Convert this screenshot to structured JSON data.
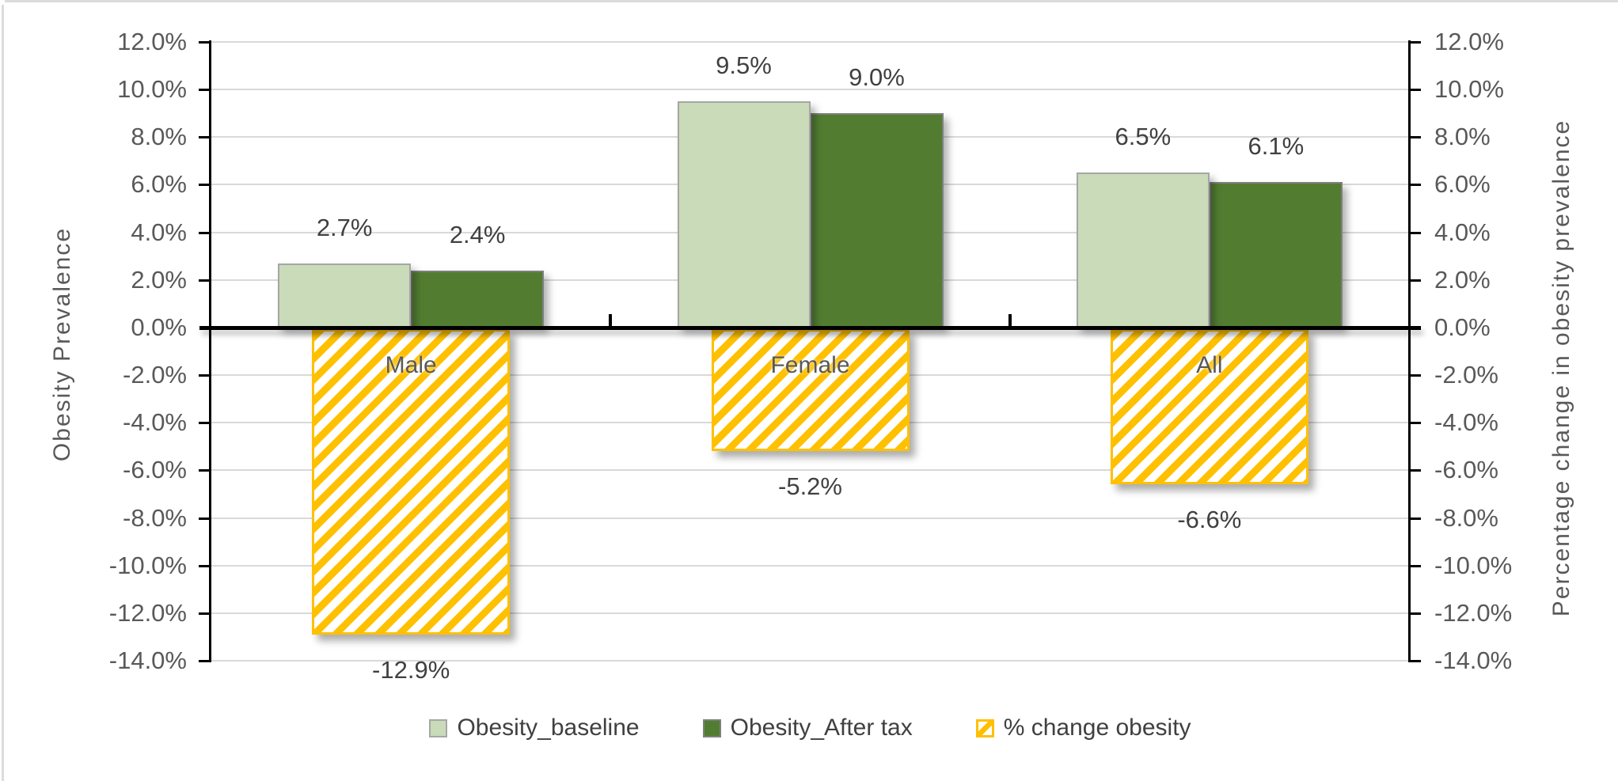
{
  "page": {
    "background": "#ffffff",
    "edge_color": "#dcdcdc"
  },
  "chart_data": {
    "type": "bar",
    "title": "",
    "categories": [
      "Male",
      "Female",
      "All"
    ],
    "series": [
      {
        "name": "Obesity_baseline",
        "axis": "primary",
        "style": "solid",
        "fill": "#c9dbb8",
        "border": "#a6a6a6",
        "values": [
          0.027,
          0.095,
          0.065
        ],
        "data_labels": [
          "2.7%",
          "9.5%",
          "6.5%"
        ]
      },
      {
        "name": "Obesity_After tax",
        "axis": "secondary-cluster",
        "style": "solid",
        "fill": "#527d31",
        "border": "#7f7f7f",
        "values": [
          0.024,
          0.09,
          0.061
        ],
        "data_labels": [
          "2.4%",
          "9.0%",
          "6.1%"
        ]
      },
      {
        "name": "% change obesity",
        "axis": "secondary",
        "style": "diagonal-hatch",
        "fill": "#ffffff",
        "hatch_color": "#ffc000",
        "border": "#ffc000",
        "values": [
          -0.129,
          -0.052,
          -0.066
        ],
        "data_labels": [
          "-12.9%",
          "-5.2%",
          "-6.6%"
        ]
      }
    ],
    "left_axis": {
      "title": "Obesity Prevalence",
      "min": -0.14,
      "max": 0.12,
      "step": 0.02,
      "tick_labels": [
        "12.0%",
        "10.0%",
        "8.0%",
        "6.0%",
        "4.0%",
        "2.0%",
        "0.0%",
        "-2.0%",
        "-4.0%",
        "-6.0%",
        "-8.0%",
        "-10.0%",
        "-12.0%",
        "-14.0%"
      ]
    },
    "right_axis": {
      "title": "Percentage change in obesity prevalence",
      "min": -0.14,
      "max": 0.12,
      "step": 0.02,
      "tick_labels": [
        "12.0%",
        "10.0%",
        "8.0%",
        "6.0%",
        "4.0%",
        "2.0%",
        "0.0%",
        "-2.0%",
        "-4.0%",
        "-6.0%",
        "-8.0%",
        "-10.0%",
        "-12.0%",
        "-14.0%"
      ]
    },
    "legend": {
      "position": "bottom",
      "entries": [
        "Obesity_baseline",
        "Obesity_After tax",
        "% change obesity"
      ]
    },
    "grid": {
      "show": true,
      "color": "#d9d9d9"
    },
    "colors": {
      "axis_line": "#000000",
      "zero_line": "#000000",
      "tick_text": "#595959",
      "data_label_text": "#404040",
      "category_label_text": "#595959",
      "legend_text": "#404040"
    }
  }
}
